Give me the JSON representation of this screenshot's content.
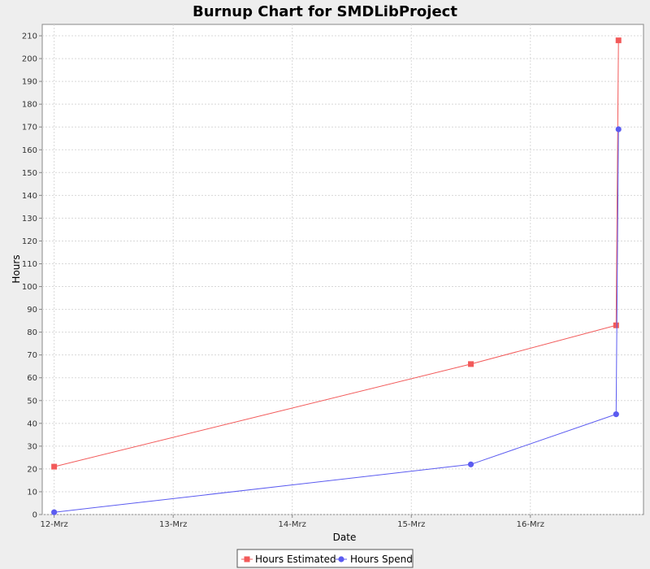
{
  "chart_data": {
    "type": "line",
    "title": "Burnup Chart for SMDLibProject",
    "xlabel": "Date",
    "ylabel": "Hours",
    "x_ticks": [
      "12-Mrz",
      "13-Mrz",
      "14-Mrz",
      "15-Mrz",
      "16-Mrz"
    ],
    "x_range_days": [
      -0.1,
      4.95
    ],
    "ylim": [
      0,
      215
    ],
    "y_ticks": [
      0,
      10,
      20,
      30,
      40,
      50,
      60,
      70,
      80,
      90,
      100,
      110,
      120,
      130,
      140,
      150,
      160,
      170,
      180,
      190,
      200,
      210
    ],
    "grid": true,
    "legend_position": "bottom",
    "series": [
      {
        "name": "Hours Estimated",
        "color": "#f25a5a",
        "marker": "square",
        "x_days": [
          0,
          3.5,
          4.72,
          4.74
        ],
        "values": [
          21,
          66,
          83,
          208
        ]
      },
      {
        "name": "Hours Spend",
        "color": "#5b5bf0",
        "marker": "circle",
        "x_days": [
          0,
          3.5,
          4.72,
          4.74
        ],
        "values": [
          1,
          22,
          44,
          169
        ]
      }
    ]
  }
}
